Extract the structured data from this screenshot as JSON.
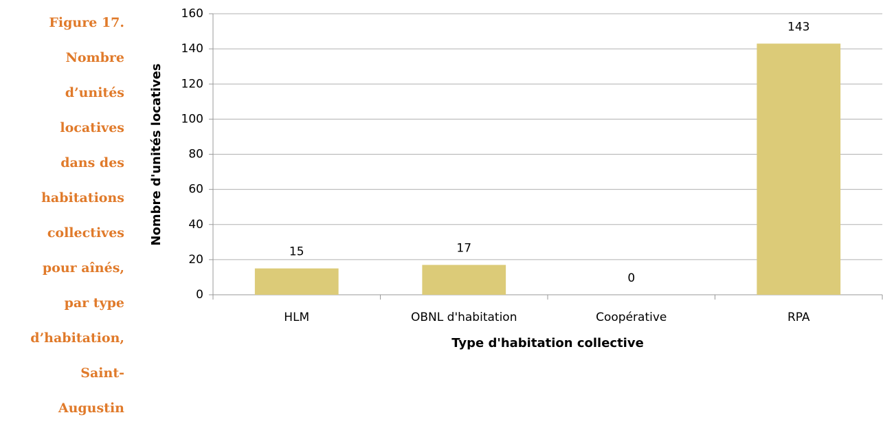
{
  "caption": {
    "lines": [
      "Figure 17.",
      "Nombre",
      "d’unités",
      "locatives",
      "dans des",
      "habitations",
      "collectives",
      "pour aînés,",
      "par type",
      "d’habitation,",
      "Saint-",
      "Augustin"
    ]
  },
  "chart_data": {
    "type": "bar",
    "categories": [
      "HLM",
      "OBNL d'habitation",
      "Coopérative",
      "RPA"
    ],
    "values": [
      15,
      17,
      0,
      143
    ],
    "color": "#dccb78",
    "xlabel": "Type d'habitation collective",
    "ylabel": "Nombre d'unités locatives",
    "ylim": [
      0,
      160
    ],
    "yticks": [
      0,
      20,
      40,
      60,
      80,
      100,
      120,
      140,
      160
    ],
    "grid": true
  }
}
